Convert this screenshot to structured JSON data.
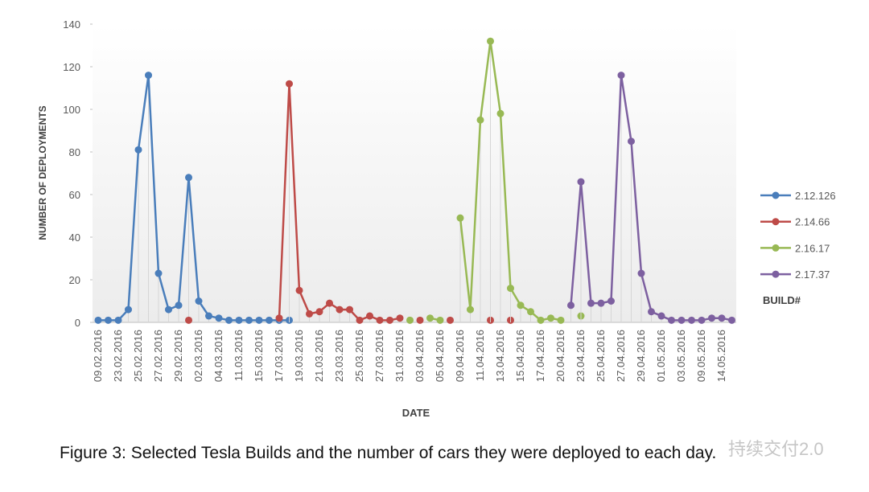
{
  "chart_data": {
    "type": "line",
    "caption": "Figure 3: Selected Tesla Builds and the number of cars they were deployed to each day.",
    "watermark": "持续交付2.0",
    "xlabel": "DATE",
    "ylabel": "NUMBER OF DEPLOYMENTS",
    "legend_title": "BUILD#",
    "ylim": [
      0,
      140
    ],
    "yticks": [
      0,
      20,
      40,
      60,
      80,
      100,
      120,
      140
    ],
    "legend": "right",
    "categories": [
      "09.02.2016",
      null,
      "23.02.2016",
      null,
      "25.02.2016",
      null,
      "27.02.2016",
      null,
      "29.02.2016",
      null,
      "02.03.2016",
      null,
      "04.03.2016",
      null,
      "11.03.2016",
      null,
      "15.03.2016",
      null,
      "17.03.2016",
      null,
      "19.03.2016",
      null,
      "21.03.2016",
      null,
      "23.03.2016",
      null,
      "25.03.2016",
      null,
      "27.03.2016",
      null,
      "31.03.2016",
      null,
      "03.04.2016",
      null,
      "05.04.2016",
      null,
      "09.04.2016",
      null,
      "11.04.2016",
      null,
      "13.04.2016",
      null,
      "15.04.2016",
      null,
      "17.04.2016",
      null,
      "20.04.2016",
      null,
      "23.04.2016",
      null,
      "25.04.2016",
      null,
      "27.04.2016",
      null,
      "29.04.2016",
      null,
      "01.05.2016",
      null,
      "03.05.2016",
      null,
      "09.05.2016",
      null,
      "14.05.2016",
      null
    ],
    "series": [
      {
        "name": "2.12.126",
        "color": "#4a7ebb",
        "values": [
          1,
          1,
          1,
          6,
          81,
          116,
          23,
          6,
          8,
          68,
          10,
          3,
          2,
          1,
          1,
          1,
          1,
          1,
          1,
          1,
          null,
          null,
          null,
          null,
          null,
          null,
          null,
          null,
          null,
          null,
          null,
          null,
          null,
          null,
          null,
          null,
          null,
          null,
          null,
          null,
          null,
          null,
          null,
          null,
          null,
          null,
          null,
          null,
          null,
          null,
          null,
          null,
          null,
          null,
          null,
          null,
          null,
          null,
          null,
          null,
          null,
          null,
          null,
          null
        ]
      },
      {
        "name": "2.14.66",
        "color": "#be4b48",
        "values": [
          null,
          null,
          null,
          null,
          null,
          null,
          null,
          null,
          null,
          1,
          null,
          null,
          null,
          null,
          null,
          null,
          null,
          null,
          2,
          112,
          15,
          4,
          5,
          9,
          6,
          6,
          1,
          3,
          1,
          1,
          2,
          null,
          1,
          null,
          null,
          1,
          null,
          null,
          null,
          1,
          null,
          1,
          null,
          null,
          null,
          null,
          null,
          null,
          null,
          null,
          null,
          null,
          null,
          null,
          null,
          null,
          null,
          null,
          null,
          null,
          null,
          null,
          null,
          null
        ]
      },
      {
        "name": "2.16.17",
        "color": "#98b954",
        "values": [
          null,
          null,
          null,
          null,
          null,
          null,
          null,
          null,
          null,
          null,
          null,
          null,
          null,
          null,
          null,
          null,
          null,
          null,
          null,
          null,
          null,
          null,
          null,
          null,
          null,
          null,
          null,
          null,
          null,
          null,
          null,
          1,
          null,
          2,
          1,
          null,
          49,
          6,
          95,
          132,
          98,
          16,
          8,
          5,
          1,
          2,
          1,
          null,
          3,
          null,
          null,
          null,
          null,
          null,
          null,
          null,
          null,
          null,
          null,
          null,
          null,
          null,
          null,
          null
        ]
      },
      {
        "name": "2.17.37",
        "color": "#7d60a0",
        "values": [
          null,
          null,
          null,
          null,
          null,
          null,
          null,
          null,
          null,
          null,
          null,
          null,
          null,
          null,
          null,
          null,
          null,
          null,
          null,
          null,
          null,
          null,
          null,
          null,
          null,
          null,
          null,
          null,
          null,
          null,
          null,
          null,
          null,
          null,
          null,
          null,
          null,
          null,
          null,
          null,
          null,
          null,
          null,
          null,
          null,
          null,
          null,
          8,
          66,
          9,
          9,
          10,
          116,
          85,
          23,
          5,
          3,
          1,
          1,
          1,
          1,
          2,
          2,
          1
        ]
      }
    ]
  }
}
